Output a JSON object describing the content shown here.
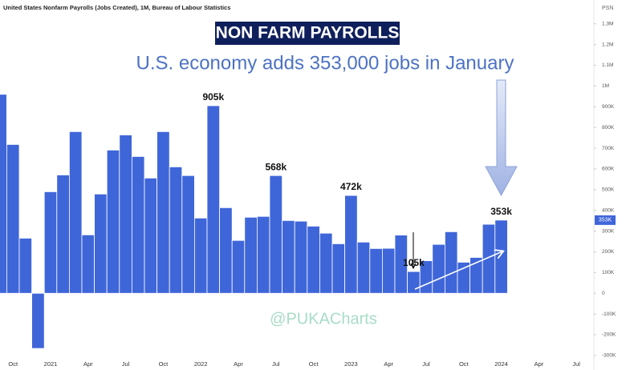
{
  "chart_data": {
    "type": "bar",
    "source_title": "United States Nonfarm Payrolls (Jobs Created), 1M, Bureau of Labour Statistics",
    "title": "NON FARM PAYROLLS",
    "subtitle": "U.S. economy adds 353,000 jobs in January",
    "watermark": "@PUKACharts",
    "corner_label": "PSN",
    "current_value_label": "353K",
    "color": "#3f66d9",
    "y_axis_side": "right",
    "categories": [
      null,
      "Oct",
      null,
      null,
      "2021",
      null,
      null,
      "Apr",
      null,
      null,
      "Jul",
      null,
      null,
      "Oct",
      null,
      null,
      "2022",
      null,
      null,
      "Apr",
      null,
      null,
      "Jul",
      null,
      null,
      "Oct",
      null,
      null,
      "2023",
      null,
      null,
      "Apr",
      null,
      null,
      "Jul",
      null,
      null,
      "Oct",
      null,
      null,
      "2024",
      null,
      null,
      "Apr",
      null,
      null,
      "Jul"
    ],
    "values": [
      960000,
      718000,
      266000,
      -266000,
      490000,
      571000,
      780000,
      282000,
      479000,
      691000,
      764000,
      660000,
      556000,
      780000,
      610000,
      568000,
      363000,
      905000,
      413000,
      255000,
      367000,
      371000,
      568000,
      351000,
      348000,
      324000,
      290000,
      239000,
      472000,
      247000,
      216000,
      217000,
      281000,
      105000,
      157000,
      236000,
      297000,
      150000,
      173000,
      333000,
      353000,
      null,
      null,
      null,
      null,
      null,
      null
    ],
    "value_labels": [
      null,
      null,
      null,
      null,
      null,
      null,
      null,
      null,
      null,
      null,
      null,
      null,
      null,
      null,
      null,
      null,
      null,
      "905k",
      null,
      null,
      null,
      null,
      "568k",
      null,
      null,
      null,
      null,
      null,
      "472k",
      null,
      null,
      null,
      null,
      "105k",
      null,
      null,
      null,
      null,
      null,
      null,
      "353k",
      null,
      null,
      null,
      null,
      null,
      null
    ],
    "ylim": [
      -370000,
      1415000
    ],
    "yticks": [
      {
        "value": -300000,
        "label": "-300K"
      },
      {
        "value": -200000,
        "label": "-200K"
      },
      {
        "value": -100000,
        "label": "-100K"
      },
      0,
      {
        "value": 100000,
        "label": "100K"
      },
      {
        "value": 200000,
        "label": "200K"
      },
      {
        "value": 300000,
        "label": "300K"
      },
      {
        "value": 400000,
        "label": "400K"
      },
      {
        "value": 500000,
        "label": "500K"
      },
      {
        "value": 600000,
        "label": "600K"
      },
      {
        "value": 700000,
        "label": "700K"
      },
      {
        "value": 800000,
        "label": "800K"
      },
      {
        "value": 900000,
        "label": "900K"
      },
      {
        "value": 1000000,
        "label": "1M"
      },
      {
        "value": 1100000,
        "label": "1.1M"
      },
      {
        "value": 1200000,
        "label": "1.2M"
      },
      {
        "value": 1300000,
        "label": "1.3M"
      }
    ]
  }
}
